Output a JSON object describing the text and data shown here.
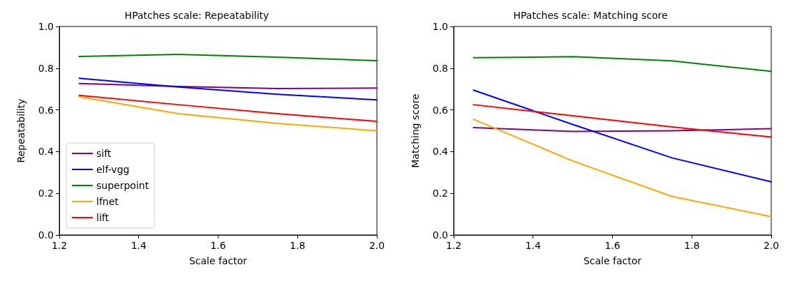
{
  "chart_data": [
    {
      "type": "line",
      "title": "HPatches scale: Repeatability",
      "xlabel": "Scale factor",
      "ylabel": "Repeatability",
      "x": [
        1.25,
        1.5,
        1.75,
        2.0
      ],
      "xlim": [
        1.2,
        2.0
      ],
      "xticks": [
        {
          "value": 1.2,
          "label": "1.2"
        },
        {
          "value": 1.4,
          "label": "1.4"
        },
        {
          "value": 1.6,
          "label": "1.6"
        },
        {
          "value": 1.8,
          "label": "1.8"
        },
        {
          "value": 2,
          "label": "2.0"
        }
      ],
      "ylim": [
        0,
        1
      ],
      "yticks": [
        {
          "value": 0,
          "label": "0.0"
        },
        {
          "value": 0.2,
          "label": "0.2"
        },
        {
          "value": 0.4,
          "label": "0.4"
        },
        {
          "value": 0.6,
          "label": "0.6"
        },
        {
          "value": 0.8,
          "label": "0.8"
        },
        {
          "value": 1,
          "label": "1.0"
        }
      ],
      "grid": false,
      "legend": "bottom left",
      "marker": "none",
      "line_style": "solid",
      "series": [
        {
          "name": "sift",
          "color": "#800080",
          "values": [
            0.727,
            0.712,
            0.702,
            0.705
          ]
        },
        {
          "name": "elf-vgg",
          "color": "#0000ff",
          "values": [
            0.752,
            0.71,
            0.675,
            0.648
          ]
        },
        {
          "name": "superpoint",
          "color": "#008000",
          "values": [
            0.856,
            0.866,
            0.853,
            0.836
          ]
        },
        {
          "name": "lfnet",
          "color": "#ffa500",
          "values": [
            0.663,
            0.582,
            0.535,
            0.5
          ]
        },
        {
          "name": "lift",
          "color": "#ff0000",
          "values": [
            0.67,
            0.625,
            0.582,
            0.545
          ]
        }
      ]
    },
    {
      "type": "line",
      "title": "HPatches scale: Matching score",
      "xlabel": "Scale factor",
      "ylabel": "Matching score",
      "x": [
        1.25,
        1.5,
        1.75,
        2.0
      ],
      "xlim": [
        1.2,
        2.0
      ],
      "xticks": [
        {
          "value": 1.2,
          "label": "1.2"
        },
        {
          "value": 1.4,
          "label": "1.4"
        },
        {
          "value": 1.6,
          "label": "1.6"
        },
        {
          "value": 1.8,
          "label": "1.8"
        },
        {
          "value": 2,
          "label": "2.0"
        }
      ],
      "ylim": [
        0,
        1
      ],
      "yticks": [
        {
          "value": 0,
          "label": "0.0"
        },
        {
          "value": 0.2,
          "label": "0.2"
        },
        {
          "value": 0.4,
          "label": "0.4"
        },
        {
          "value": 0.6,
          "label": "0.6"
        },
        {
          "value": 0.8,
          "label": "0.8"
        },
        {
          "value": 1,
          "label": "1.0"
        }
      ],
      "grid": false,
      "legend": false,
      "marker": "none",
      "line_style": "solid",
      "series": [
        {
          "color": "#800080",
          "values": [
            0.515,
            0.497,
            0.5,
            0.51
          ]
        },
        {
          "color": "#0000ff",
          "values": [
            0.695,
            0.53,
            0.37,
            0.255
          ]
        },
        {
          "color": "#008000",
          "values": [
            0.85,
            0.855,
            0.835,
            0.785
          ]
        },
        {
          "color": "#ffa500",
          "values": [
            0.555,
            0.355,
            0.185,
            0.088
          ]
        },
        {
          "color": "#ff0000",
          "values": [
            0.625,
            0.572,
            0.518,
            0.47
          ]
        }
      ]
    }
  ]
}
